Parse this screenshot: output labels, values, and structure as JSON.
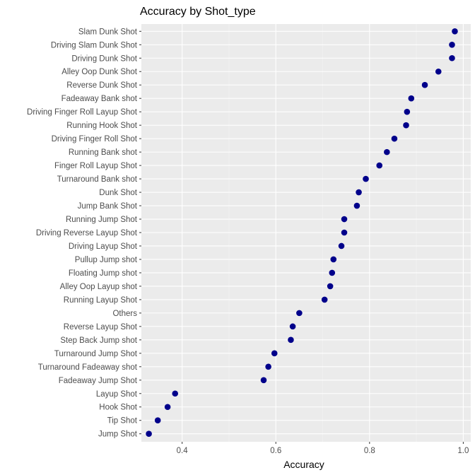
{
  "chart_data": {
    "type": "scatter",
    "title": "Accuracy by Shot_type",
    "xlabel": "Accuracy",
    "ylabel": "",
    "xlim": [
      0.313,
      1.016
    ],
    "xticks": [
      0.4,
      0.6,
      0.8,
      1.0
    ],
    "xtick_labels": [
      "0.4",
      "0.6",
      "0.8",
      "1.0"
    ],
    "grid": true,
    "colors": {
      "panel": "#ebebeb",
      "grid_major": "#ffffff",
      "grid_minor": "#f4f4f4",
      "point": "#00008b",
      "tick_text": "#4d4d4d"
    },
    "categories": [
      "Slam Dunk Shot",
      "Driving Slam Dunk Shot",
      "Driving Dunk Shot",
      "Alley Oop Dunk Shot",
      "Reverse Dunk Shot",
      "Fadeaway Bank shot",
      "Driving Finger Roll Layup Shot",
      "Running Hook Shot",
      "Driving Finger Roll Shot",
      "Running Bank shot",
      "Finger Roll Layup Shot",
      "Turnaround Bank shot",
      "Dunk Shot",
      "Jump Bank Shot",
      "Running Jump Shot",
      "Driving Reverse Layup Shot",
      "Driving Layup Shot",
      "Pullup Jump shot",
      "Floating Jump shot",
      "Alley Oop Layup shot",
      "Running Layup Shot",
      "Others",
      "Reverse Layup Shot",
      "Step Back Jump shot",
      "Turnaround Jump Shot",
      "Turnaround Fadeaway shot",
      "Fadeaway Jump Shot",
      "Layup Shot",
      "Hook Shot",
      "Tip Shot",
      "Jump Shot"
    ],
    "values": [
      0.982,
      0.976,
      0.976,
      0.947,
      0.918,
      0.889,
      0.88,
      0.878,
      0.853,
      0.837,
      0.821,
      0.792,
      0.777,
      0.773,
      0.746,
      0.746,
      0.74,
      0.723,
      0.72,
      0.716,
      0.704,
      0.65,
      0.636,
      0.632,
      0.597,
      0.584,
      0.574,
      0.385,
      0.369,
      0.348,
      0.329
    ]
  }
}
